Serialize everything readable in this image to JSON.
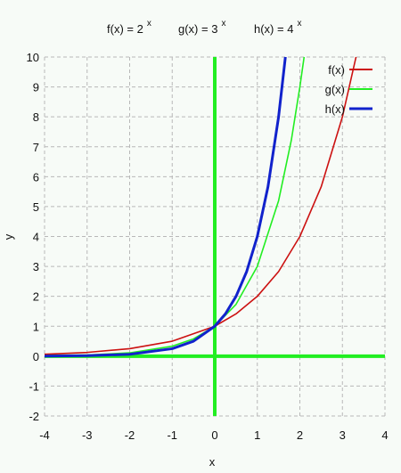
{
  "chart_data": {
    "type": "line",
    "title_parts": [
      {
        "base": "f(x) =  2",
        "exp": "x"
      },
      {
        "base": "g(x) =  3",
        "exp": "x"
      },
      {
        "base": "h(x) = 4",
        "exp": "x"
      }
    ],
    "xlabel": "x",
    "ylabel": "y",
    "xlim": [
      -4,
      4
    ],
    "ylim": [
      -2,
      10
    ],
    "x_ticks": [
      -4,
      -3,
      -2,
      -1,
      0,
      1,
      2,
      3,
      4
    ],
    "y_ticks": [
      -2,
      -1,
      0,
      1,
      2,
      3,
      4,
      5,
      6,
      7,
      8,
      9,
      10
    ],
    "grid": true,
    "legend_position": "top-right",
    "axis_line_color": "#22ee22",
    "series": [
      {
        "name": "f(x)",
        "color": "#cc1111",
        "x": [
          -4,
          -3,
          -2,
          -1,
          0,
          0.5,
          1,
          1.5,
          2,
          2.5,
          3,
          3.32
        ],
        "y": [
          0.0625,
          0.125,
          0.25,
          0.5,
          1,
          1.414,
          2,
          2.828,
          4,
          5.657,
          8,
          10
        ]
      },
      {
        "name": "g(x)",
        "color": "#22ee22",
        "x": [
          -4,
          -3,
          -2,
          -1,
          -0.5,
          0,
          0.5,
          1,
          1.5,
          1.8,
          2,
          2.1
        ],
        "y": [
          0.012,
          0.037,
          0.111,
          0.333,
          0.577,
          1,
          1.732,
          3,
          5.196,
          7.225,
          9,
          10
        ]
      },
      {
        "name": "h(x)",
        "color": "#1122cc",
        "x": [
          -4,
          -3,
          -2,
          -1,
          -0.5,
          0,
          0.25,
          0.5,
          0.75,
          1,
          1.25,
          1.5,
          1.66
        ],
        "y": [
          0.004,
          0.016,
          0.0625,
          0.25,
          0.5,
          1,
          1.414,
          2,
          2.828,
          4,
          5.657,
          8,
          10
        ]
      }
    ]
  }
}
